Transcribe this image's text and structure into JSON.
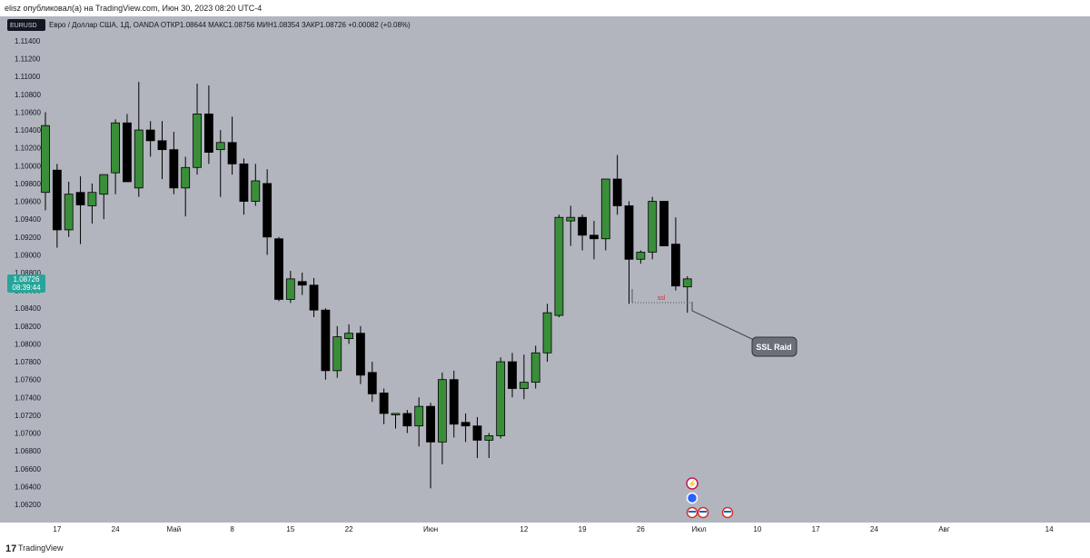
{
  "header": {
    "publisher_line": "elisz опубликовал(а) на TradingView.com, Июн 30, 2023 08:20 UTC-4"
  },
  "legend": {
    "symbol_box": "EURUSD",
    "text": "Евро / Доллар США, 1Д, OANDA  ОТКР1.08644  МАКС1.08756  МИН1.08354  ЗАКР1.08726  +0.00082 (+0.08%)"
  },
  "price_label": {
    "value": "1.08726",
    "countdown": "08:39:44",
    "color": "#26a69a"
  },
  "annotations": {
    "ssl_text": "ssl",
    "callout_text": "SSL Raid"
  },
  "footer": {
    "logo": "17",
    "brand": "TradingView"
  },
  "colors": {
    "background": "#b2b5be",
    "bull": "#3a8e3a",
    "bear": "#000000",
    "price_tag": "#26a69a"
  },
  "chart_data": {
    "type": "candlestick",
    "ylim": [
      1.061,
      1.115
    ],
    "y_ticks": [
      "1.11400",
      "1.11200",
      "1.11000",
      "1.10800",
      "1.10600",
      "1.10400",
      "1.10200",
      "1.10000",
      "1.09800",
      "1.09600",
      "1.09400",
      "1.09200",
      "1.09000",
      "1.08800",
      "1.08600",
      "1.08400",
      "1.08200",
      "1.08000",
      "1.07800",
      "1.07600",
      "1.07400",
      "1.07200",
      "1.07000",
      "1.06800",
      "1.06600",
      "1.06400",
      "1.06200"
    ],
    "x_ticks": [
      {
        "label": "17",
        "i": 1
      },
      {
        "label": "24",
        "i": 6
      },
      {
        "label": "Май",
        "i": 11
      },
      {
        "label": "8",
        "i": 16
      },
      {
        "label": "15",
        "i": 21
      },
      {
        "label": "22",
        "i": 26
      },
      {
        "label": "Июн",
        "i": 33
      },
      {
        "label": "12",
        "i": 41
      },
      {
        "label": "19",
        "i": 46
      },
      {
        "label": "26",
        "i": 51
      },
      {
        "label": "Июл",
        "i": 56
      },
      {
        "label": "10",
        "i": 61
      },
      {
        "label": "17",
        "i": 66
      },
      {
        "label": "24",
        "i": 71
      },
      {
        "label": "Авг",
        "i": 77
      },
      {
        "label": "14",
        "i": 86
      }
    ],
    "candles": [
      {
        "o": 1.097,
        "h": 1.106,
        "l": 1.095,
        "c": 1.1045
      },
      {
        "o": 1.0995,
        "h": 1.1002,
        "l": 1.0908,
        "c": 1.0928
      },
      {
        "o": 1.0928,
        "h": 1.0982,
        "l": 1.092,
        "c": 1.0968
      },
      {
        "o": 1.097,
        "h": 1.0988,
        "l": 1.0912,
        "c": 1.0956
      },
      {
        "o": 1.0955,
        "h": 1.098,
        "l": 1.0935,
        "c": 1.097
      },
      {
        "o": 1.0968,
        "h": 1.099,
        "l": 1.094,
        "c": 1.099
      },
      {
        "o": 1.0992,
        "h": 1.1052,
        "l": 1.0968,
        "c": 1.1048
      },
      {
        "o": 1.1048,
        "h": 1.1058,
        "l": 1.0982,
        "c": 1.0982
      },
      {
        "o": 1.0975,
        "h": 1.1094,
        "l": 1.0965,
        "c": 1.104
      },
      {
        "o": 1.104,
        "h": 1.105,
        "l": 1.101,
        "c": 1.1028
      },
      {
        "o": 1.1028,
        "h": 1.105,
        "l": 1.0985,
        "c": 1.1018
      },
      {
        "o": 1.1018,
        "h": 1.1038,
        "l": 1.0968,
        "c": 1.0975
      },
      {
        "o": 1.0975,
        "h": 1.101,
        "l": 1.0943,
        "c": 1.0998
      },
      {
        "o": 1.0998,
        "h": 1.1092,
        "l": 1.099,
        "c": 1.1058
      },
      {
        "o": 1.1058,
        "h": 1.109,
        "l": 1.1002,
        "c": 1.1015
      },
      {
        "o": 1.1018,
        "h": 1.104,
        "l": 1.0965,
        "c": 1.1026
      },
      {
        "o": 1.1026,
        "h": 1.1055,
        "l": 1.099,
        "c": 1.1002
      },
      {
        "o": 1.1002,
        "h": 1.1008,
        "l": 1.0945,
        "c": 1.096
      },
      {
        "o": 1.096,
        "h": 1.1002,
        "l": 1.0955,
        "c": 1.0983
      },
      {
        "o": 1.098,
        "h": 1.0996,
        "l": 1.09,
        "c": 1.092
      },
      {
        "o": 1.0918,
        "h": 1.092,
        "l": 1.0848,
        "c": 1.085
      },
      {
        "o": 1.085,
        "h": 1.0882,
        "l": 1.0846,
        "c": 1.0873
      },
      {
        "o": 1.087,
        "h": 1.088,
        "l": 1.0855,
        "c": 1.0866
      },
      {
        "o": 1.0866,
        "h": 1.0874,
        "l": 1.083,
        "c": 1.0838
      },
      {
        "o": 1.0838,
        "h": 1.084,
        "l": 1.076,
        "c": 1.077
      },
      {
        "o": 1.077,
        "h": 1.082,
        "l": 1.0762,
        "c": 1.0808
      },
      {
        "o": 1.0806,
        "h": 1.0822,
        "l": 1.08,
        "c": 1.0812
      },
      {
        "o": 1.0812,
        "h": 1.082,
        "l": 1.0755,
        "c": 1.0765
      },
      {
        "o": 1.0768,
        "h": 1.078,
        "l": 1.0735,
        "c": 1.0744
      },
      {
        "o": 1.0745,
        "h": 1.075,
        "l": 1.071,
        "c": 1.0722
      },
      {
        "o": 1.0722,
        "h": 1.0722,
        "l": 1.0705,
        "c": 1.0722
      },
      {
        "o": 1.0722,
        "h": 1.0726,
        "l": 1.07,
        "c": 1.0708
      },
      {
        "o": 1.0708,
        "h": 1.074,
        "l": 1.0685,
        "c": 1.073
      },
      {
        "o": 1.073,
        "h": 1.0734,
        "l": 1.0638,
        "c": 1.069
      },
      {
        "o": 1.069,
        "h": 1.0768,
        "l": 1.0665,
        "c": 1.076
      },
      {
        "o": 1.076,
        "h": 1.077,
        "l": 1.0695,
        "c": 1.071
      },
      {
        "o": 1.0712,
        "h": 1.0722,
        "l": 1.069,
        "c": 1.0708
      },
      {
        "o": 1.0708,
        "h": 1.0718,
        "l": 1.0672,
        "c": 1.0692
      },
      {
        "o": 1.0692,
        "h": 1.07,
        "l": 1.0672,
        "c": 1.0697
      },
      {
        "o": 1.0697,
        "h": 1.0785,
        "l": 1.0694,
        "c": 1.078
      },
      {
        "o": 1.078,
        "h": 1.079,
        "l": 1.074,
        "c": 1.075
      },
      {
        "o": 1.075,
        "h": 1.0788,
        "l": 1.0738,
        "c": 1.0757
      },
      {
        "o": 1.0757,
        "h": 1.0798,
        "l": 1.075,
        "c": 1.079
      },
      {
        "o": 1.079,
        "h": 1.0845,
        "l": 1.078,
        "c": 1.0835
      },
      {
        "o": 1.0832,
        "h": 1.0945,
        "l": 1.083,
        "c": 1.0942
      },
      {
        "o": 1.0938,
        "h": 1.0955,
        "l": 1.091,
        "c": 1.0942
      },
      {
        "o": 1.0942,
        "h": 1.0945,
        "l": 1.0905,
        "c": 1.0922
      },
      {
        "o": 1.0922,
        "h": 1.0938,
        "l": 1.0895,
        "c": 1.0918
      },
      {
        "o": 1.0918,
        "h": 1.0985,
        "l": 1.0905,
        "c": 1.0985
      },
      {
        "o": 1.0985,
        "h": 1.1012,
        "l": 1.0945,
        "c": 1.0955
      },
      {
        "o": 1.0955,
        "h": 1.096,
        "l": 1.0845,
        "c": 1.0895
      },
      {
        "o": 1.0895,
        "h": 1.0905,
        "l": 1.089,
        "c": 1.0903
      },
      {
        "o": 1.0903,
        "h": 1.0965,
        "l": 1.0895,
        "c": 1.096
      },
      {
        "o": 1.096,
        "h": 1.096,
        "l": 1.091,
        "c": 1.091
      },
      {
        "o": 1.0912,
        "h": 1.0942,
        "l": 1.086,
        "c": 1.0865
      },
      {
        "o": 1.0864,
        "h": 1.0876,
        "l": 1.0835,
        "c": 1.0873
      }
    ]
  }
}
